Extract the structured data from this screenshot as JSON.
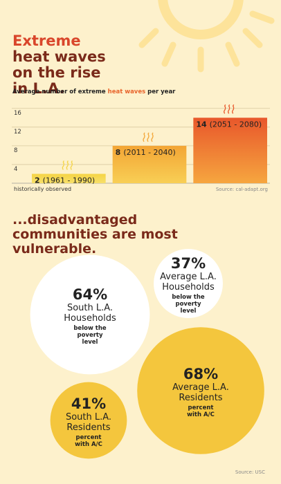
{
  "headline": {
    "highlight": "Extreme",
    "rest": "heat waves on the rise in L.A."
  },
  "chart_data": [
    {
      "type": "bar",
      "subtitle": [
        "Average number of extreme",
        "heat waves",
        "per year"
      ],
      "categories": [
        "(1961 - 1990)",
        "(2011 - 2040)",
        "(2051 - 2080)"
      ],
      "values": [
        2,
        8,
        14
      ],
      "colors": [
        "#f5d444",
        "#f3a535",
        "#e8572b"
      ],
      "ylim": [
        0,
        17
      ],
      "yticks": [
        4,
        8,
        12,
        16
      ],
      "grid": true,
      "note": "historically observed",
      "source": "Source: cal-adapt.org"
    },
    {
      "type": "bubble",
      "title": "...disadvantaged communities are most vulnerable.",
      "values": [
        64,
        37,
        68,
        41
      ],
      "value_labels": [
        "64%",
        "37%",
        "68%",
        "41%"
      ],
      "labels": [
        "South L.A. Households",
        "Average L.A. Households",
        "Average L.A. Residents",
        "South L.A. Residents"
      ],
      "notes": [
        "below the poverty level",
        "below the poverty level",
        "percent with A/C",
        "percent with A/C"
      ],
      "colors": [
        "#ffffff",
        "#ffffff",
        "#f4c63d",
        "#f4c63d"
      ],
      "source": "Source: USC"
    }
  ]
}
